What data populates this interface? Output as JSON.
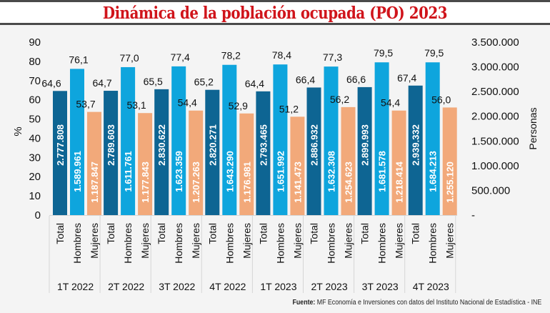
{
  "chart_data": {
    "type": "bar",
    "title": "Dinámica de la población ocupada (PO) 2023",
    "ylabel": "%",
    "ylabel_right": "Personas",
    "ylim": [
      0,
      90
    ],
    "ylim_right": [
      0,
      3500000
    ],
    "yticks": [
      "0",
      "10",
      "20",
      "30",
      "40",
      "50",
      "60",
      "70",
      "80",
      "90"
    ],
    "yticks_right": [
      "-",
      "500.000",
      "1.000.000",
      "1.500.000",
      "2.000.000",
      "2.500.000",
      "3.000.000",
      "3.500.000"
    ],
    "groups": [
      "1T 2022",
      "2T 2022",
      "3T 2022",
      "4T 2022",
      "1T 2023",
      "2T 2023",
      "3T 2023",
      "4T 2023"
    ],
    "categories": [
      "Total",
      "Hombres",
      "Mujeres"
    ],
    "grid": false,
    "legend": "none",
    "series": [
      {
        "name": "Total",
        "color": "#0e6593",
        "percent": [
          64.6,
          64.7,
          65.5,
          65.2,
          64.4,
          66.4,
          66.6,
          67.4
        ],
        "percent_labels": [
          "64,6",
          "64,7",
          "65,5",
          "65,2",
          "64,4",
          "66,4",
          "66,6",
          "67,4"
        ],
        "persons_labels": [
          "2.777.808",
          "2.789.603",
          "2.830.622",
          "2.820.271",
          "2.793.465",
          "2.886.932",
          "2.899.993",
          "2.939.332"
        ]
      },
      {
        "name": "Hombres",
        "color": "#0ea5dd",
        "percent": [
          76.1,
          77.0,
          77.4,
          78.2,
          78.4,
          77.3,
          79.5,
          79.5
        ],
        "percent_labels": [
          "76,1",
          "77,0",
          "77,4",
          "78,2",
          "78,4",
          "77,3",
          "79,5",
          "79,5"
        ],
        "persons_labels": [
          "1.589.961",
          "1.611.761",
          "1.623.359",
          "1.643.290",
          "1.651.992",
          "1.632.308",
          "1.681.578",
          "1.684.213"
        ]
      },
      {
        "name": "Mujeres",
        "color": "#f2a97a",
        "percent": [
          53.7,
          53.1,
          54.4,
          52.9,
          51.2,
          56.2,
          54.4,
          56.0
        ],
        "percent_labels": [
          "53,7",
          "53,1",
          "54,4",
          "52,9",
          "51,2",
          "56,2",
          "54,4",
          "56,0"
        ],
        "persons_labels": [
          "1.187.847",
          "1.177.843",
          "1.207.263",
          "1.176.981",
          "1.141.473",
          "1.254.623",
          "1.218.414",
          "1.255.120"
        ]
      }
    ]
  },
  "source": {
    "label": "Fuente:",
    "text": " MF Economía e Inversiones con datos del Instituto Nacional de Estadística - INE"
  }
}
